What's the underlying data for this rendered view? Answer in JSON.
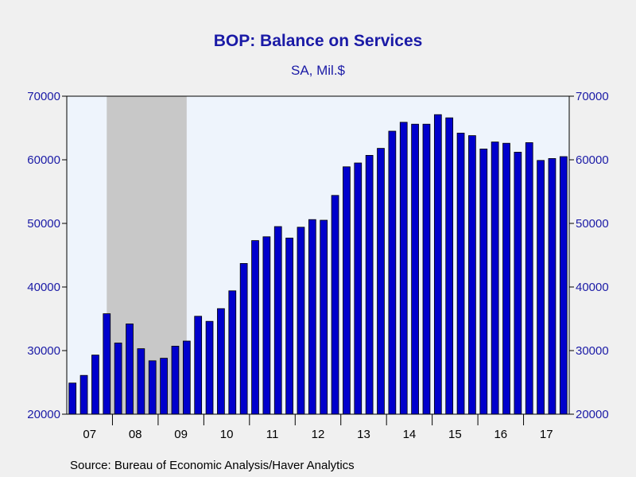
{
  "chart_data": {
    "type": "bar",
    "title": "BOP: Balance on Services",
    "subtitle": "SA, Mil.$",
    "source": "Source:  Bureau of Economic Analysis/Haver Analytics",
    "ylim": [
      20000,
      70000
    ],
    "yticks": [
      20000,
      30000,
      40000,
      50000,
      60000,
      70000
    ],
    "y_axis_both_sides": true,
    "x_tick_labels": [
      "07",
      "08",
      "09",
      "10",
      "11",
      "12",
      "13",
      "14",
      "15",
      "16",
      "17"
    ],
    "categories": [
      "2007Q1",
      "2007Q2",
      "2007Q3",
      "2007Q4",
      "2008Q1",
      "2008Q2",
      "2008Q3",
      "2008Q4",
      "2009Q1",
      "2009Q2",
      "2009Q3",
      "2009Q4",
      "2010Q1",
      "2010Q2",
      "2010Q3",
      "2010Q4",
      "2011Q1",
      "2011Q2",
      "2011Q3",
      "2011Q4",
      "2012Q1",
      "2012Q2",
      "2012Q3",
      "2012Q4",
      "2013Q1",
      "2013Q2",
      "2013Q3",
      "2013Q4",
      "2014Q1",
      "2014Q2",
      "2014Q3",
      "2014Q4",
      "2015Q1",
      "2015Q2",
      "2015Q3",
      "2015Q4",
      "2016Q1",
      "2016Q2",
      "2016Q3",
      "2016Q4",
      "2017Q1",
      "2017Q2",
      "2017Q3",
      "2017Q4"
    ],
    "values": [
      24900,
      26100,
      29300,
      35800,
      31200,
      34200,
      30300,
      28400,
      28800,
      30700,
      31500,
      35400,
      34600,
      36600,
      39400,
      43700,
      47300,
      47900,
      49500,
      47700,
      49400,
      50600,
      50500,
      54400,
      58900,
      59500,
      60700,
      61800,
      64500,
      65900,
      65600,
      65600,
      67100,
      66600,
      64200,
      63800,
      61700,
      62800,
      62600,
      61200,
      62700,
      59900,
      60200,
      60500
    ],
    "recession_shading": {
      "start": "2007Q4",
      "end": "2009Q2"
    },
    "colors": {
      "bar": "#0000cc",
      "bar_outline": "#000000",
      "plot_bg": "#eef4fc",
      "recession": "#c8c8c8",
      "text": "#1a1aa6",
      "page_bg": "#f0f0f0"
    },
    "grid": false,
    "legend": "none"
  }
}
